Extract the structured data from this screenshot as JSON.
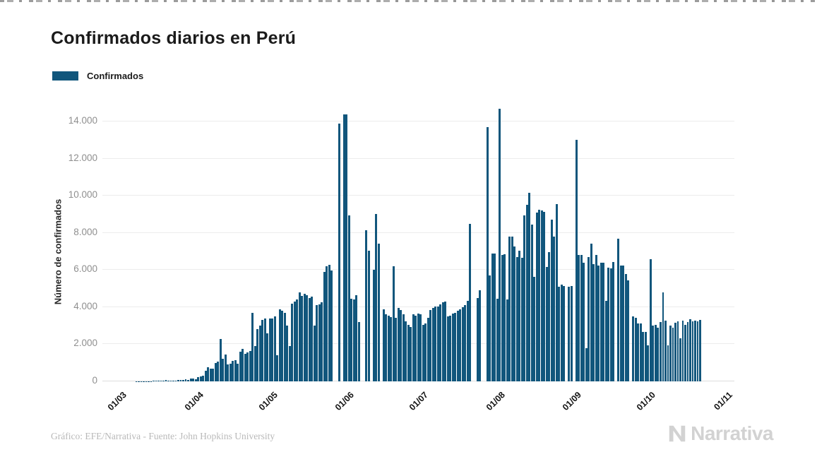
{
  "title": "Confirmados diarios en Perú",
  "legend": {
    "label": "Confirmados"
  },
  "y_axis": {
    "title": "Número de confirmados",
    "tick_values": [
      0,
      2000,
      4000,
      6000,
      8000,
      10000,
      12000,
      14000
    ],
    "tick_labels": [
      "0",
      "2.000",
      "4.000",
      "6.000",
      "8.000",
      "10.000",
      "12.000",
      "14.000"
    ]
  },
  "x_axis": {
    "ticks": [
      {
        "label": "01/03",
        "day": 0
      },
      {
        "label": "01/04",
        "day": 31
      },
      {
        "label": "01/05",
        "day": 61
      },
      {
        "label": "01/06",
        "day": 92
      },
      {
        "label": "01/07",
        "day": 122
      },
      {
        "label": "01/08",
        "day": 153
      },
      {
        "label": "01/09",
        "day": 184
      },
      {
        "label": "01/10",
        "day": 214
      },
      {
        "label": "01/11",
        "day": 245
      }
    ]
  },
  "footer": {
    "credit": "Gráfico: EFE/Narrativa - Fuente: John Hopkins University"
  },
  "branding": {
    "logo_text": "Narrativa"
  },
  "colors": {
    "bar": "#11567C",
    "grid": "#ECECEC",
    "axis_tick_text": "#8F8F8F",
    "dark_text": "#1B1B1B",
    "footer_text": "#B9B9B9",
    "logo_gray": "#D2D2D2"
  },
  "chart_data": {
    "type": "bar",
    "title": "Confirmados diarios en Perú",
    "series_name": "Confirmados",
    "xlabel": "",
    "ylabel": "Número de confirmados",
    "ylim": [
      0,
      14860
    ],
    "grid": true,
    "legend_position": "top-left",
    "x": [
      "01/03",
      "02/03",
      "03/03",
      "04/03",
      "05/03",
      "06/03",
      "07/03",
      "08/03",
      "09/03",
      "10/03",
      "11/03",
      "12/03",
      "13/03",
      "14/03",
      "15/03",
      "16/03",
      "17/03",
      "18/03",
      "19/03",
      "20/03",
      "21/03",
      "22/03",
      "23/03",
      "24/03",
      "25/03",
      "26/03",
      "27/03",
      "28/03",
      "29/03",
      "30/03",
      "31/03",
      "01/04",
      "02/04",
      "03/04",
      "04/04",
      "05/04",
      "06/04",
      "07/04",
      "08/04",
      "09/04",
      "10/04",
      "11/04",
      "12/04",
      "13/04",
      "14/04",
      "15/04",
      "16/04",
      "17/04",
      "18/04",
      "19/04",
      "20/04",
      "21/04",
      "22/04",
      "23/04",
      "24/04",
      "25/04",
      "26/04",
      "27/04",
      "28/04",
      "29/04",
      "30/04",
      "01/05",
      "02/05",
      "03/05",
      "04/05",
      "05/05",
      "06/05",
      "07/05",
      "08/05",
      "09/05",
      "10/05",
      "11/05",
      "12/05",
      "13/05",
      "14/05",
      "15/05",
      "16/05",
      "17/05",
      "18/05",
      "19/05",
      "20/05",
      "21/05",
      "22/05",
      "23/05",
      "24/05",
      "25/05",
      "26/05",
      "27/05",
      "28/05",
      "29/05",
      "30/05",
      "31/05",
      "01/06",
      "02/06",
      "03/06",
      "04/06",
      "05/06",
      "06/06",
      "07/06",
      "08/06",
      "09/06",
      "10/06",
      "11/06",
      "12/06",
      "13/06",
      "14/06",
      "15/06",
      "16/06",
      "17/06",
      "18/06",
      "19/06",
      "20/06",
      "21/06",
      "22/06",
      "23/06",
      "24/06",
      "25/06",
      "26/06",
      "27/06",
      "28/06",
      "29/06",
      "30/06",
      "01/07",
      "02/07",
      "03/07",
      "04/07",
      "05/07",
      "06/07",
      "07/07",
      "08/07",
      "09/07",
      "10/07",
      "11/07",
      "12/07",
      "13/07",
      "14/07",
      "15/07",
      "16/07",
      "17/07",
      "18/07",
      "19/07",
      "20/07",
      "21/07",
      "22/07",
      "23/07",
      "24/07",
      "25/07",
      "26/07",
      "27/07",
      "28/07",
      "29/07",
      "30/07",
      "31/07",
      "01/08",
      "02/08",
      "03/08",
      "04/08",
      "05/08",
      "06/08",
      "07/08",
      "08/08",
      "09/08",
      "10/08",
      "11/08",
      "12/08",
      "13/08",
      "14/08",
      "15/08",
      "16/08",
      "17/08",
      "18/08",
      "19/08",
      "20/08",
      "21/08",
      "22/08",
      "23/08",
      "24/08",
      "25/08",
      "26/08",
      "27/08",
      "28/08",
      "29/08",
      "30/08",
      "31/08",
      "01/09",
      "02/09",
      "03/09",
      "04/09",
      "05/09",
      "06/09",
      "07/09",
      "08/09",
      "09/09",
      "10/09",
      "11/09",
      "12/09",
      "13/09",
      "14/09",
      "15/09",
      "16/09",
      "17/09",
      "18/09",
      "19/09",
      "20/09",
      "21/09",
      "22/09",
      "23/09",
      "24/09",
      "25/09",
      "26/09",
      "27/09",
      "28/09",
      "29/09",
      "30/09",
      "01/10",
      "02/10",
      "03/10",
      "04/10",
      "05/10",
      "06/10",
      "07/10",
      "08/10",
      "09/10",
      "10/10",
      "11/10",
      "12/10",
      "13/10",
      "14/10",
      "15/10",
      "16/10",
      "17/10",
      "18/10",
      "19/10",
      "20/10",
      "21/10"
    ],
    "values": [
      0,
      0,
      0,
      0,
      0,
      2,
      5,
      4,
      9,
      11,
      13,
      17,
      10,
      38,
      43,
      30,
      31,
      28,
      89,
      29,
      55,
      28,
      45,
      62,
      64,
      80,
      130,
      93,
      134,
      169,
      114,
      213,
      280,
      320,
      570,
      760,
      670,
      700,
      1000,
      1050,
      2300,
      1200,
      1450,
      900,
      950,
      1100,
      1150,
      950,
      1600,
      1750,
      1500,
      1550,
      1650,
      3700,
      1900,
      2800,
      3000,
      3300,
      3400,
      2600,
      3400,
      3400,
      3500,
      1400,
      3900,
      3800,
      3700,
      3000,
      1900,
      4200,
      4300,
      4400,
      4800,
      4600,
      4700,
      4650,
      4500,
      4550,
      3000,
      4100,
      4150,
      4250,
      5900,
      6200,
      6280,
      5970,
      0,
      0,
      13900,
      0,
      14400,
      14400,
      8950,
      4450,
      4400,
      4640,
      3200,
      0,
      0,
      8130,
      7050,
      0,
      6030,
      9030,
      7430,
      0,
      3890,
      3620,
      3530,
      3450,
      6220,
      3430,
      3940,
      3840,
      3620,
      3240,
      3050,
      2920,
      3620,
      3530,
      3660,
      3620,
      3050,
      3110,
      3430,
      3840,
      3960,
      4040,
      4040,
      4130,
      4250,
      4310,
      3500,
      3550,
      3650,
      3700,
      3800,
      3900,
      4000,
      4100,
      4350,
      8500,
      0,
      0,
      4500,
      4900,
      0,
      0,
      13700,
      5700,
      6900,
      6900,
      4450,
      14700,
      6800,
      6850,
      4400,
      7800,
      7800,
      7250,
      6700,
      7050,
      6670,
      8950,
      9520,
      10160,
      8450,
      5650,
      9080,
      9230,
      9200,
      9130,
      6150,
      6970,
      8700,
      7800,
      9550,
      5080,
      5200,
      5150,
      0,
      5100,
      5150,
      0,
      13000,
      6800,
      6800,
      6400,
      1800,
      6700,
      7430,
      6300,
      6800,
      6250,
      6400,
      6400,
      4320,
      6140,
      6080,
      6420,
      0,
      7690,
      6250,
      6250,
      5800,
      5430,
      0,
      3490,
      3430,
      3130,
      3130,
      2670,
      2670,
      1930,
      6600,
      3000,
      3050,
      2900,
      3200,
      4790,
      3280,
      1930,
      3000,
      2890,
      3140,
      3230,
      2320,
      3280,
      3050,
      3180,
      3340,
      3250,
      3280,
      3250,
      3300
    ]
  }
}
